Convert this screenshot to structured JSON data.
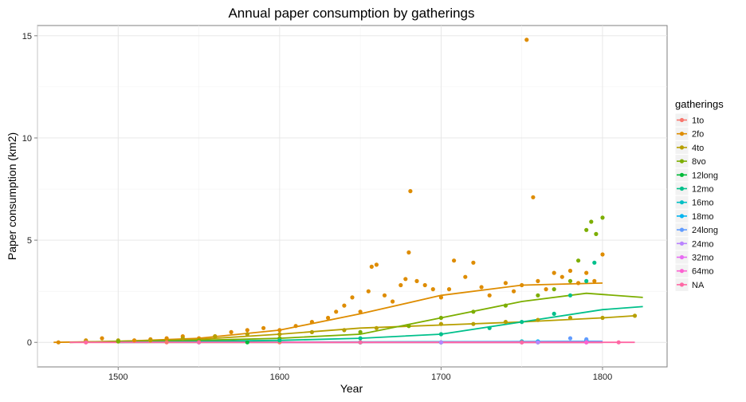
{
  "chart_data": {
    "type": "scatter",
    "title": "Annual paper consumption by gatherings",
    "xlabel": "Year",
    "ylabel": "Paper consumption (km2)",
    "xlim": [
      1450,
      1840
    ],
    "ylim": [
      -1.2,
      15.5
    ],
    "xticks": [
      "1500",
      "1600",
      "1700",
      "1800"
    ],
    "yticks": [
      "0",
      "5",
      "10",
      "15"
    ],
    "grid": true,
    "legend": {
      "title": "gatherings",
      "position": "right"
    },
    "series": [
      {
        "name": "1to",
        "color": "#F8766D",
        "trend": [
          [
            1470,
            0.0
          ],
          [
            1800,
            0.0
          ]
        ],
        "points": [
          [
            1480,
            0.0
          ],
          [
            1530,
            0.0
          ],
          [
            1600,
            0.0
          ],
          [
            1650,
            0.0
          ],
          [
            1700,
            0.0
          ],
          [
            1750,
            0.0
          ],
          [
            1790,
            0.0
          ]
        ]
      },
      {
        "name": "2fo",
        "color": "#DE8C00",
        "trend": [
          [
            1460,
            0.0
          ],
          [
            1500,
            0.05
          ],
          [
            1550,
            0.2
          ],
          [
            1600,
            0.6
          ],
          [
            1650,
            1.4
          ],
          [
            1700,
            2.3
          ],
          [
            1750,
            2.8
          ],
          [
            1800,
            2.9
          ]
        ],
        "points": [
          [
            1463,
            0.0
          ],
          [
            1480,
            0.1
          ],
          [
            1490,
            0.2
          ],
          [
            1500,
            0.05
          ],
          [
            1510,
            0.1
          ],
          [
            1520,
            0.15
          ],
          [
            1530,
            0.2
          ],
          [
            1540,
            0.3
          ],
          [
            1550,
            0.2
          ],
          [
            1560,
            0.3
          ],
          [
            1570,
            0.5
          ],
          [
            1580,
            0.6
          ],
          [
            1590,
            0.7
          ],
          [
            1600,
            0.6
          ],
          [
            1610,
            0.8
          ],
          [
            1620,
            1.0
          ],
          [
            1630,
            1.2
          ],
          [
            1635,
            1.5
          ],
          [
            1640,
            1.8
          ],
          [
            1645,
            2.2
          ],
          [
            1650,
            1.5
          ],
          [
            1655,
            2.5
          ],
          [
            1657,
            3.7
          ],
          [
            1660,
            3.8
          ],
          [
            1665,
            2.3
          ],
          [
            1670,
            2.0
          ],
          [
            1675,
            2.8
          ],
          [
            1678,
            3.1
          ],
          [
            1680,
            4.4
          ],
          [
            1681,
            7.4
          ],
          [
            1685,
            3.0
          ],
          [
            1690,
            2.8
          ],
          [
            1695,
            2.6
          ],
          [
            1700,
            2.2
          ],
          [
            1705,
            2.6
          ],
          [
            1708,
            4.0
          ],
          [
            1715,
            3.2
          ],
          [
            1720,
            3.9
          ],
          [
            1725,
            2.7
          ],
          [
            1730,
            2.3
          ],
          [
            1740,
            2.9
          ],
          [
            1745,
            2.5
          ],
          [
            1750,
            2.8
          ],
          [
            1753,
            14.8
          ],
          [
            1757,
            7.1
          ],
          [
            1760,
            3.0
          ],
          [
            1765,
            2.6
          ],
          [
            1770,
            3.4
          ],
          [
            1775,
            3.2
          ],
          [
            1780,
            3.5
          ],
          [
            1785,
            2.9
          ],
          [
            1790,
            3.4
          ],
          [
            1795,
            3.0
          ],
          [
            1800,
            4.3
          ]
        ]
      },
      {
        "name": "4to",
        "color": "#B79F00",
        "trend": [
          [
            1470,
            0.0
          ],
          [
            1550,
            0.15
          ],
          [
            1600,
            0.4
          ],
          [
            1650,
            0.7
          ],
          [
            1700,
            0.85
          ],
          [
            1750,
            1.0
          ],
          [
            1800,
            1.2
          ],
          [
            1820,
            1.3
          ]
        ],
        "points": [
          [
            1480,
            0.05
          ],
          [
            1500,
            0.1
          ],
          [
            1520,
            0.1
          ],
          [
            1540,
            0.2
          ],
          [
            1560,
            0.3
          ],
          [
            1580,
            0.4
          ],
          [
            1600,
            0.4
          ],
          [
            1620,
            0.5
          ],
          [
            1640,
            0.6
          ],
          [
            1660,
            0.7
          ],
          [
            1680,
            0.8
          ],
          [
            1700,
            0.9
          ],
          [
            1720,
            0.9
          ],
          [
            1740,
            1.0
          ],
          [
            1760,
            1.1
          ],
          [
            1780,
            1.2
          ],
          [
            1800,
            1.2
          ],
          [
            1820,
            1.3
          ]
        ]
      },
      {
        "name": "8vo",
        "color": "#7CAE00",
        "trend": [
          [
            1470,
            0.0
          ],
          [
            1550,
            0.1
          ],
          [
            1600,
            0.2
          ],
          [
            1650,
            0.4
          ],
          [
            1700,
            1.2
          ],
          [
            1750,
            2.0
          ],
          [
            1790,
            2.4
          ],
          [
            1825,
            2.2
          ]
        ],
        "points": [
          [
            1500,
            0.05
          ],
          [
            1550,
            0.1
          ],
          [
            1600,
            0.2
          ],
          [
            1650,
            0.5
          ],
          [
            1680,
            0.8
          ],
          [
            1700,
            1.2
          ],
          [
            1720,
            1.5
          ],
          [
            1740,
            1.8
          ],
          [
            1760,
            2.3
          ],
          [
            1770,
            2.6
          ],
          [
            1780,
            3.0
          ],
          [
            1785,
            4.0
          ],
          [
            1790,
            5.5
          ],
          [
            1793,
            5.9
          ],
          [
            1796,
            5.3
          ],
          [
            1800,
            6.1
          ]
        ]
      },
      {
        "name": "12long",
        "color": "#00BA38",
        "trend": [
          [
            1500,
            0.0
          ],
          [
            1800,
            0.0
          ]
        ],
        "points": [
          [
            1580,
            0.0
          ],
          [
            1650,
            0.0
          ],
          [
            1700,
            0.0
          ],
          [
            1760,
            0.0
          ]
        ]
      },
      {
        "name": "12mo",
        "color": "#00C08B",
        "trend": [
          [
            1500,
            0.0
          ],
          [
            1600,
            0.1
          ],
          [
            1650,
            0.2
          ],
          [
            1700,
            0.4
          ],
          [
            1750,
            1.0
          ],
          [
            1800,
            1.6
          ],
          [
            1825,
            1.75
          ]
        ],
        "points": [
          [
            1600,
            0.1
          ],
          [
            1650,
            0.2
          ],
          [
            1700,
            0.4
          ],
          [
            1730,
            0.7
          ],
          [
            1750,
            1.0
          ],
          [
            1770,
            1.4
          ],
          [
            1780,
            2.3
          ],
          [
            1790,
            3.0
          ],
          [
            1795,
            3.9
          ]
        ]
      },
      {
        "name": "16mo",
        "color": "#00BFC4",
        "trend": [
          [
            1500,
            0.0
          ],
          [
            1800,
            0.05
          ]
        ],
        "points": [
          [
            1550,
            0.0
          ],
          [
            1650,
            0.0
          ],
          [
            1750,
            0.05
          ],
          [
            1790,
            0.1
          ]
        ]
      },
      {
        "name": "18mo",
        "color": "#00B4F0",
        "trend": [
          [
            1600,
            0.0
          ],
          [
            1800,
            0.05
          ]
        ],
        "points": [
          [
            1700,
            0.0
          ],
          [
            1760,
            0.05
          ],
          [
            1790,
            0.1
          ]
        ]
      },
      {
        "name": "24long",
        "color": "#619CFF",
        "trend": [
          [
            1650,
            0.0
          ],
          [
            1800,
            0.05
          ]
        ],
        "points": [
          [
            1780,
            0.2
          ],
          [
            1790,
            0.15
          ]
        ]
      },
      {
        "name": "24mo",
        "color": "#B983FF",
        "trend": [
          [
            1600,
            0.0
          ],
          [
            1800,
            0.0
          ]
        ],
        "points": [
          [
            1700,
            0.0
          ],
          [
            1760,
            0.0
          ]
        ]
      },
      {
        "name": "32mo",
        "color": "#E76BF3",
        "trend": [
          [
            1600,
            0.0
          ],
          [
            1800,
            0.0
          ]
        ],
        "points": [
          [
            1750,
            0.0
          ],
          [
            1790,
            0.0
          ]
        ]
      },
      {
        "name": "64mo",
        "color": "#FD61D1",
        "trend": [
          [
            1700,
            0.0
          ],
          [
            1800,
            0.0
          ]
        ],
        "points": [
          [
            1790,
            0.0
          ]
        ]
      },
      {
        "name": "NA",
        "color": "#FF67A4",
        "trend": [
          [
            1470,
            0.0
          ],
          [
            1820,
            0.0
          ]
        ],
        "points": [
          [
            1480,
            0.0
          ],
          [
            1550,
            0.0
          ],
          [
            1650,
            0.0
          ],
          [
            1750,
            0.0
          ],
          [
            1810,
            0.0
          ]
        ]
      }
    ]
  }
}
